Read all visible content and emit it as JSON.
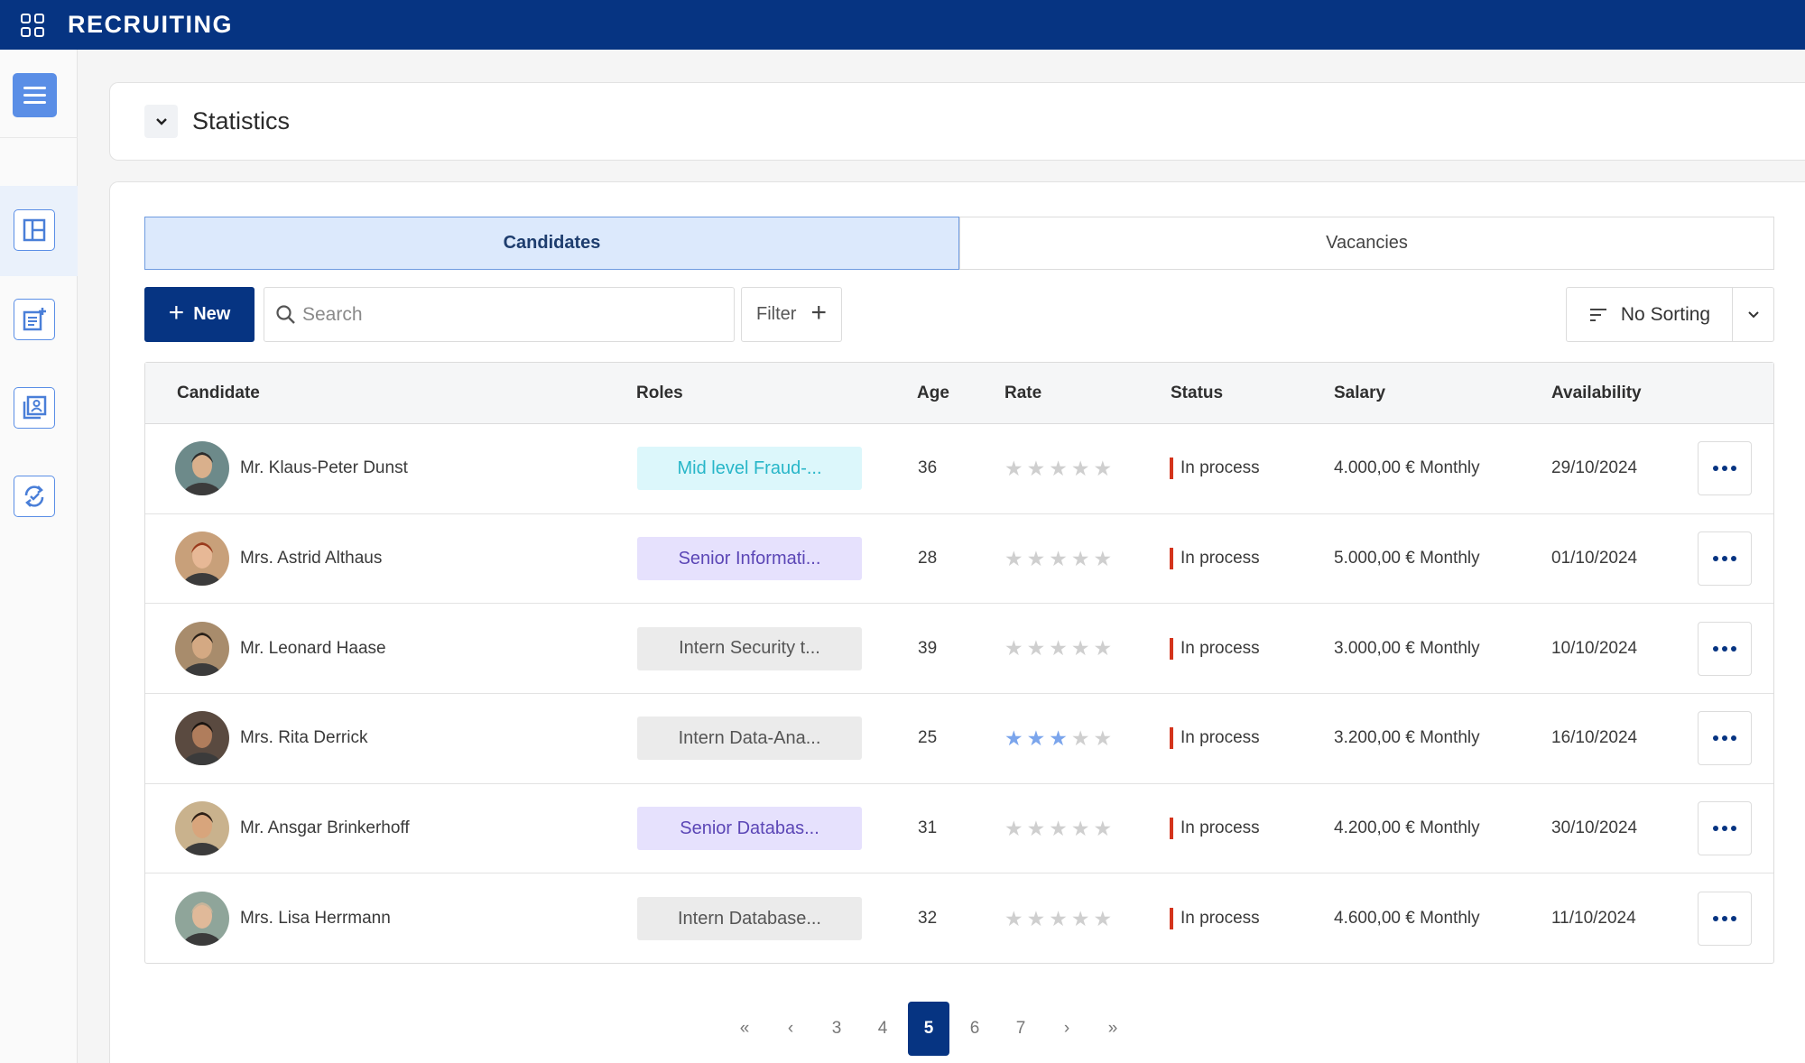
{
  "app": {
    "title": "RECRUITING"
  },
  "stats": {
    "label": "Statistics"
  },
  "tabs": [
    {
      "label": "Candidates",
      "active": true
    },
    {
      "label": "Vacancies",
      "active": false
    }
  ],
  "toolbar": {
    "new_label": "New",
    "search_placeholder": "Search",
    "filter_label": "Filter",
    "sort_label": "No Sorting"
  },
  "table": {
    "columns": [
      "Candidate",
      "Roles",
      "Age",
      "Rate",
      "Status",
      "Salary",
      "Availability"
    ],
    "rows": [
      {
        "name": "Mr. Klaus-Peter Dunst",
        "role": "Mid level Fraud-...",
        "role_color": "teal",
        "age": "36",
        "rating": 0,
        "status": "In process",
        "salary": "4.000,00 € Monthly",
        "availability": "29/10/2024"
      },
      {
        "name": "Mrs. Astrid Althaus",
        "role": "Senior Informati...",
        "role_color": "purple",
        "age": "28",
        "rating": 0,
        "status": "In process",
        "salary": "5.000,00 € Monthly",
        "availability": "01/10/2024"
      },
      {
        "name": "Mr. Leonard Haase",
        "role": "Intern Security t...",
        "role_color": "gray",
        "age": "39",
        "rating": 0,
        "status": "In process",
        "salary": "3.000,00 € Monthly",
        "availability": "10/10/2024"
      },
      {
        "name": "Mrs. Rita Derrick",
        "role": "Intern Data-Ana...",
        "role_color": "gray",
        "age": "25",
        "rating": 3,
        "status": "In process",
        "salary": "3.200,00 € Monthly",
        "availability": "16/10/2024"
      },
      {
        "name": "Mr. Ansgar Brinkerhoff",
        "role": "Senior Databas...",
        "role_color": "purple",
        "age": "31",
        "rating": 0,
        "status": "In process",
        "salary": "4.200,00 € Monthly",
        "availability": "30/10/2024"
      },
      {
        "name": "Mrs. Lisa Herrmann",
        "role": "Intern Database...",
        "role_color": "gray",
        "age": "32",
        "rating": 0,
        "status": "In process",
        "salary": "4.600,00 € Monthly",
        "availability": "11/10/2024"
      }
    ]
  },
  "pagination": {
    "first": "«",
    "prev": "‹",
    "pages": [
      "3",
      "4",
      "5",
      "6",
      "7"
    ],
    "current": "5",
    "next": "›",
    "last": "»"
  },
  "colors": {
    "brand": "#063482",
    "status_in_process": "#d4341c",
    "star_filled": "#7ba5ec"
  }
}
